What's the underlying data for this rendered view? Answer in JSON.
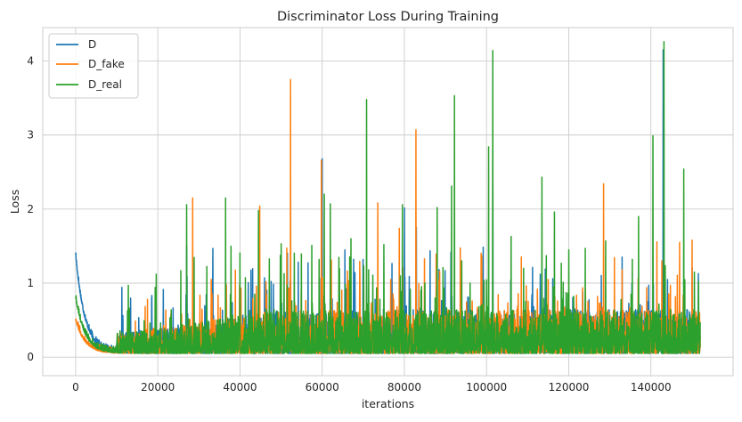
{
  "chart_data": {
    "type": "line",
    "title": "Discriminator Loss During Training",
    "xlabel": "iterations",
    "ylabel": "Loss",
    "xlim": [
      -8000,
      160000
    ],
    "ylim": [
      -0.25,
      4.45
    ],
    "x_ticks": [
      0,
      20000,
      40000,
      60000,
      80000,
      100000,
      120000,
      140000
    ],
    "x_tick_labels": [
      "0",
      "20000",
      "40000",
      "60000",
      "80000",
      "100000",
      "120000",
      "140000"
    ],
    "y_ticks": [
      0,
      1,
      2,
      3,
      4
    ],
    "y_tick_labels": [
      "0",
      "1",
      "2",
      "3",
      "4"
    ],
    "grid": true,
    "legend_position": "top-left",
    "x_max_iteration": 152000,
    "series": [
      {
        "name": "D",
        "color": "#1f77b4",
        "start_value": 1.38,
        "baseline": 0.05,
        "peaks": [
          [
            60000,
            2.68
          ],
          [
            52300,
            1.05
          ],
          [
            27000,
            1.5
          ],
          [
            101500,
            2.8
          ],
          [
            143000,
            4.15
          ]
        ]
      },
      {
        "name": "D_fake",
        "color": "#ff7f0e",
        "start_value": 0.5,
        "baseline": 0.05,
        "peaks": [
          [
            28500,
            2.15
          ],
          [
            44800,
            2.04
          ],
          [
            52300,
            3.75
          ],
          [
            59800,
            2.66
          ],
          [
            82800,
            3.07
          ],
          [
            128500,
            2.34
          ],
          [
            147000,
            1.55
          ],
          [
            150000,
            1.58
          ],
          [
            17500,
            0.78
          ],
          [
            33000,
            1.05
          ]
        ]
      },
      {
        "name": "D_real",
        "color": "#2ca02c",
        "start_value": 0.8,
        "baseline": 0.05,
        "peaks": [
          [
            12800,
            0.97
          ],
          [
            27000,
            2.06
          ],
          [
            36500,
            2.15
          ],
          [
            44500,
            1.98
          ],
          [
            50000,
            1.53
          ],
          [
            57500,
            1.51
          ],
          [
            60500,
            2.2
          ],
          [
            62000,
            2.07
          ],
          [
            67000,
            1.6
          ],
          [
            70800,
            3.48
          ],
          [
            75000,
            1.52
          ],
          [
            79500,
            2.06
          ],
          [
            88000,
            2.02
          ],
          [
            91500,
            2.31
          ],
          [
            92200,
            3.53
          ],
          [
            101500,
            4.14
          ],
          [
            100500,
            2.84
          ],
          [
            106000,
            1.63
          ],
          [
            113500,
            2.43
          ],
          [
            116500,
            1.96
          ],
          [
            124000,
            1.47
          ],
          [
            129000,
            1.57
          ],
          [
            140500,
            2.99
          ],
          [
            143200,
            4.26
          ],
          [
            148000,
            2.54
          ],
          [
            137000,
            1.9
          ],
          [
            109000,
            1.2
          ],
          [
            85000,
            1.0
          ],
          [
            96000,
            1.0
          ],
          [
            120000,
            1.45
          ]
        ]
      }
    ]
  }
}
